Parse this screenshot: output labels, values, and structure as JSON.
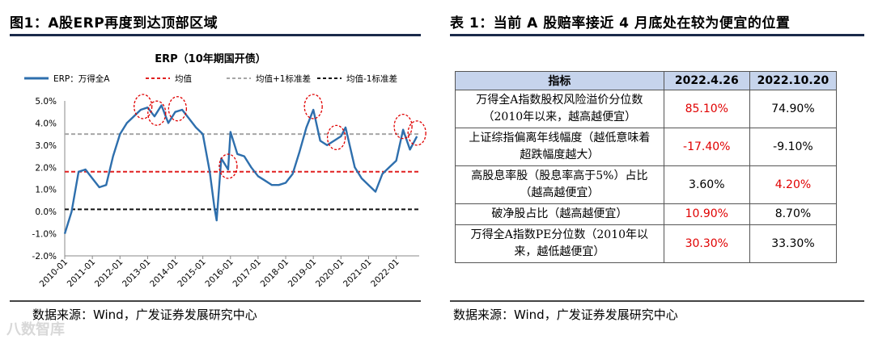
{
  "left_title": "图1：A股ERP再度到达顶部区域",
  "right_title": "表 1：当前 A 股赔率接近 4 月底处在较为便宜的位置",
  "left_source": "数据来源：Wind，广发证券发展研究中心",
  "right_source": "数据来源：Wind，广发证券发展研究中心",
  "watermark": "八数智库",
  "colors": {
    "erp": "#2e6fad",
    "mean": "#e02020",
    "plus1": "#a6a6a6",
    "minus1": "#111111",
    "header_bg": "#c6d4ec",
    "highlight": "#e00000"
  },
  "chart_data": {
    "type": "line",
    "title": "ERP（10年期国开债）",
    "legend_position": "top",
    "series": [
      {
        "name": "ERP：万得全A",
        "style": "solid",
        "x": [
          "2010-01",
          "2010-04",
          "2010-07",
          "2010-10",
          "2011-01",
          "2011-04",
          "2011-07",
          "2011-10",
          "2012-01",
          "2012-04",
          "2012-07",
          "2012-10",
          "2013-01",
          "2013-04",
          "2013-07",
          "2013-10",
          "2014-01",
          "2014-04",
          "2014-07",
          "2014-10",
          "2015-01",
          "2015-04",
          "2015-06",
          "2015-07",
          "2015-09",
          "2015-12",
          "2016-01",
          "2016-04",
          "2016-07",
          "2016-10",
          "2017-01",
          "2017-04",
          "2017-07",
          "2017-10",
          "2018-01",
          "2018-04",
          "2018-07",
          "2018-10",
          "2019-01",
          "2019-04",
          "2019-07",
          "2019-10",
          "2020-01",
          "2020-03",
          "2020-07",
          "2020-10",
          "2021-01",
          "2021-04",
          "2021-07",
          "2021-10",
          "2022-01",
          "2022-04",
          "2022-07",
          "2022-10"
        ],
        "values": [
          -1.0,
          0.0,
          1.8,
          1.9,
          1.5,
          1.1,
          1.2,
          2.5,
          3.5,
          4.0,
          4.3,
          4.6,
          4.7,
          4.3,
          4.8,
          4.0,
          4.5,
          4.6,
          4.2,
          3.8,
          3.5,
          1.8,
          0.2,
          -0.4,
          2.4,
          1.9,
          3.6,
          2.6,
          2.5,
          2.0,
          1.6,
          1.4,
          1.2,
          1.2,
          1.3,
          1.7,
          2.7,
          3.8,
          4.6,
          3.2,
          3.0,
          3.2,
          3.4,
          3.8,
          2.0,
          1.5,
          1.2,
          0.9,
          1.7,
          2.0,
          2.3,
          3.7,
          2.8,
          3.4
        ]
      },
      {
        "name": "均值",
        "style": "dashed",
        "values": [
          1.8
        ]
      },
      {
        "name": "均值+1标准差",
        "style": "dashed",
        "values": [
          3.5
        ]
      },
      {
        "name": "均值-1标准差",
        "style": "dashed",
        "values": [
          0.1
        ]
      }
    ],
    "x_ticks": [
      "2010-01",
      "2011-01",
      "2012-01",
      "2013-01",
      "2014-01",
      "2015-01",
      "2016-01",
      "2017-01",
      "2018-01",
      "2019-01",
      "2020-01",
      "2021-01",
      "2022-01"
    ],
    "y_ticks": [
      "5.0%",
      "4.0%",
      "3.0%",
      "2.0%",
      "1.0%",
      "0.0%",
      "-1.0%",
      "-2.0%"
    ],
    "ylim": [
      -2,
      5
    ],
    "highlights": [
      "2012-11",
      "2013-05",
      "2014-02",
      "2015-12",
      "2019-01",
      "2019-11",
      "2022-04",
      "2022-10"
    ]
  },
  "table": {
    "headers": [
      "指标",
      "2022.4.26",
      "2022.10.20"
    ],
    "rows": [
      {
        "label": [
          "万得全A指数股权风险溢价分位数",
          "（2010年以来，越高越便宜）"
        ],
        "v1": "85.10%",
        "v2": "74.90%",
        "v1_red": true,
        "v2_red": false
      },
      {
        "label": [
          "上证综指偏离年线幅度（越低意味着",
          "超跌幅度越大）"
        ],
        "v1": "-17.40%",
        "v2": "-9.10%",
        "v1_red": true,
        "v2_red": false
      },
      {
        "label": [
          "高股息率股（股息率高于5%）占比",
          "（越高越便宜）"
        ],
        "v1": "3.60%",
        "v2": "4.20%",
        "v1_red": false,
        "v2_red": true
      },
      {
        "label": [
          "破净股占比（越高越便宜）"
        ],
        "v1": "10.90%",
        "v2": "8.70%",
        "v1_red": true,
        "v2_red": false
      },
      {
        "label": [
          "万得全A指数PE分位数（2010年以",
          "来，越低越便宜）"
        ],
        "v1": "30.30%",
        "v2": "33.30%",
        "v1_red": true,
        "v2_red": false
      }
    ]
  }
}
